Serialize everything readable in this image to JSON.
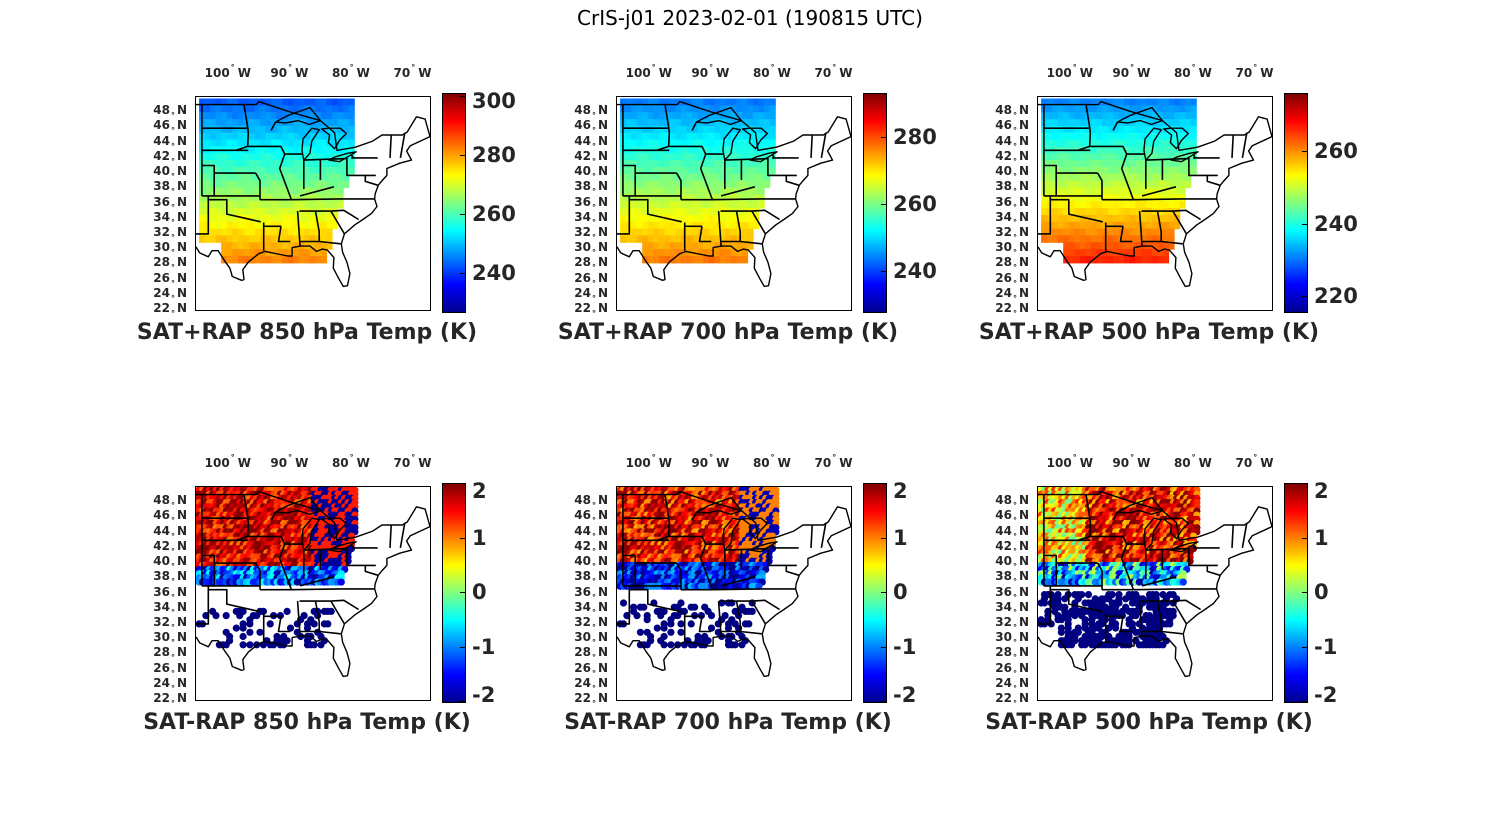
{
  "figure_title": "CrIS-j01 2023-02-01 (190815 UTC)",
  "lon_labels": [
    {
      "deg": "100",
      "dir": "W"
    },
    {
      "deg": "90",
      "dir": "W"
    },
    {
      "deg": "80",
      "dir": "W"
    },
    {
      "deg": "70",
      "dir": "W"
    }
  ],
  "lat_labels": [
    {
      "deg": "48",
      "dir": "N"
    },
    {
      "deg": "46",
      "dir": "N"
    },
    {
      "deg": "44",
      "dir": "N"
    },
    {
      "deg": "42",
      "dir": "N"
    },
    {
      "deg": "40",
      "dir": "N"
    },
    {
      "deg": "38",
      "dir": "N"
    },
    {
      "deg": "36",
      "dir": "N"
    },
    {
      "deg": "34",
      "dir": "N"
    },
    {
      "deg": "32",
      "dir": "N"
    },
    {
      "deg": "30",
      "dir": "N"
    },
    {
      "deg": "28",
      "dir": "N"
    },
    {
      "deg": "26",
      "dir": "N"
    },
    {
      "deg": "24",
      "dir": "N"
    },
    {
      "deg": "22",
      "dir": "N"
    }
  ],
  "colormap": "jet",
  "panels": [
    {
      "caption": "SAT+RAP 850 hPa Temp (K)",
      "field": "absolute",
      "clim": [
        227,
        301
      ],
      "ticks": [
        "300",
        "280",
        "260",
        "240"
      ],
      "tick_values": [
        300,
        280,
        260,
        240
      ],
      "pattern": "abs850"
    },
    {
      "caption": "SAT+RAP 700 hPa Temp (K)",
      "field": "absolute",
      "clim": [
        228,
        293
      ],
      "ticks": [
        "280",
        "260",
        "240"
      ],
      "tick_values": [
        280,
        260,
        240
      ],
      "pattern": "abs700"
    },
    {
      "caption": "SAT+RAP 500 hPa Temp (K)",
      "field": "absolute",
      "clim": [
        216,
        276
      ],
      "ticks": [
        "260",
        "240",
        "220"
      ],
      "tick_values": [
        260,
        240,
        220
      ],
      "pattern": "abs500"
    },
    {
      "caption": "SAT-RAP 850 hPa Temp (K)",
      "field": "difference",
      "clim": [
        -2,
        2
      ],
      "ticks": [
        "2",
        "1",
        "0",
        "-1",
        "-2"
      ],
      "tick_values": [
        2,
        1,
        0,
        -1,
        -2
      ],
      "pattern": "diff850"
    },
    {
      "caption": "SAT-RAP 700 hPa Temp (K)",
      "field": "difference",
      "clim": [
        -2,
        2
      ],
      "ticks": [
        "2",
        "1",
        "0",
        "-1",
        "-2"
      ],
      "tick_values": [
        2,
        1,
        0,
        -1,
        -2
      ],
      "pattern": "diff700"
    },
    {
      "caption": "SAT-RAP 500 hPa Temp (K)",
      "field": "difference",
      "clim": [
        -2,
        2
      ],
      "ticks": [
        "2",
        "1",
        "0",
        "-1",
        "-2"
      ],
      "tick_values": [
        2,
        1,
        0,
        -1,
        -2
      ],
      "pattern": "diff500"
    }
  ]
}
